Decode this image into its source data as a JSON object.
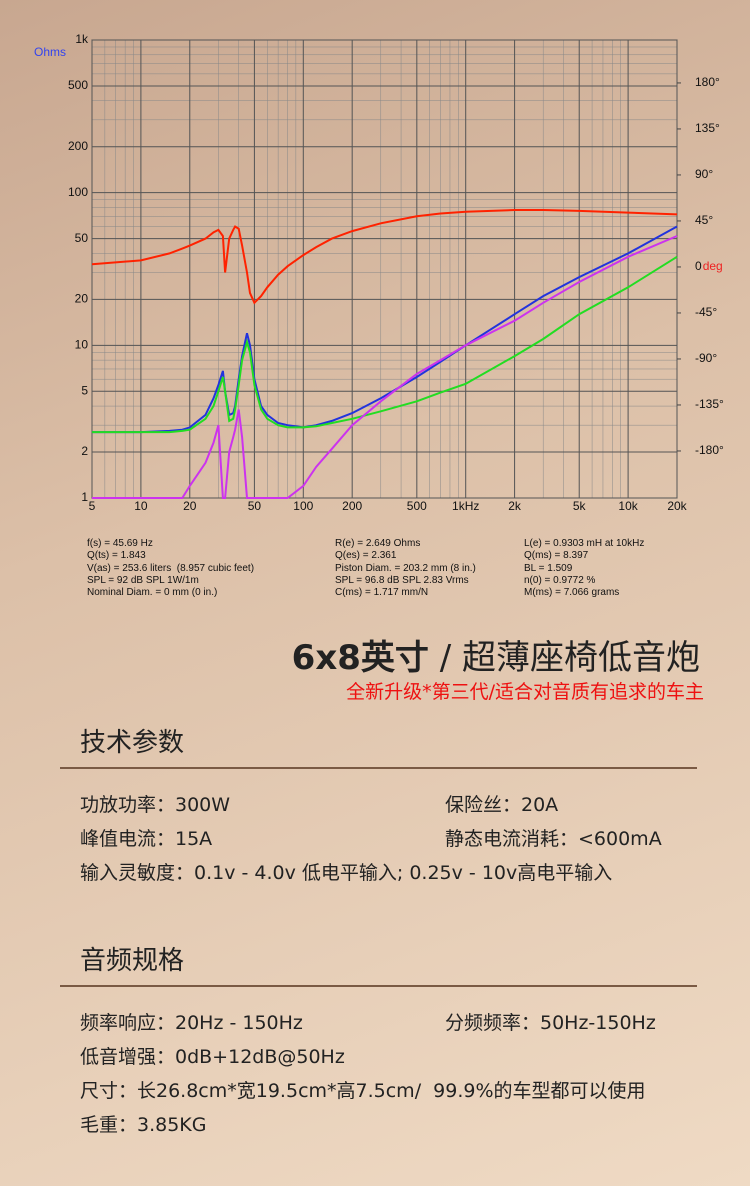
{
  "chart_data": {
    "type": "line",
    "xscale": "log",
    "yscale": "log",
    "xlim": [
      5,
      20000
    ],
    "ylim": [
      1,
      1000
    ],
    "y2lim": [
      -226,
      222
    ],
    "xticks": [
      5,
      10,
      20,
      50,
      100,
      200,
      500,
      {
        "value": 1000,
        "label": "1kHz"
      },
      {
        "value": 2000,
        "label": "2k"
      },
      {
        "value": 5000,
        "label": "5k"
      },
      {
        "value": 10000,
        "label": "10k"
      },
      {
        "value": 20000,
        "label": "20k"
      }
    ],
    "yticks": [
      1,
      2,
      5,
      10,
      20,
      50,
      100,
      200,
      500,
      {
        "value": 1000,
        "label": "1k"
      }
    ],
    "y2ticks": [
      {
        "value": 180,
        "label": "180°"
      },
      {
        "value": 135,
        "label": "135°"
      },
      {
        "value": 90,
        "label": "90°"
      },
      {
        "value": 45,
        "label": "45°"
      },
      0,
      {
        "value": -45,
        "label": "-45°"
      },
      {
        "value": -90,
        "label": "-90°"
      },
      {
        "value": -135,
        "label": "-135°"
      },
      {
        "value": -180,
        "label": "-180°"
      }
    ],
    "ylabel": "Ohms",
    "y2label": "deg",
    "grid": true,
    "x": [
      5,
      10,
      15,
      18,
      20,
      25,
      28,
      30,
      32,
      33,
      35,
      37,
      38,
      40,
      42,
      45,
      47,
      50,
      55,
      60,
      70,
      80,
      100,
      120,
      150,
      200,
      300,
      500,
      700,
      1000,
      2000,
      3000,
      5000,
      10000,
      20000
    ],
    "series": [
      {
        "color": "#ff2200",
        "values": [
          34,
          36,
          40,
          43,
          45,
          50,
          55,
          57,
          52,
          30,
          50,
          57,
          60,
          58,
          45,
          30,
          22,
          19,
          21,
          24,
          29,
          33,
          39,
          44,
          50,
          56,
          63,
          70,
          73,
          75,
          77,
          77,
          76,
          74,
          72
        ]
      },
      {
        "color": "#2233dd",
        "values": [
          2.7,
          2.7,
          2.75,
          2.8,
          2.9,
          3.5,
          4.5,
          5.5,
          6.8,
          5,
          3.5,
          3.6,
          4,
          6,
          8.5,
          12,
          10,
          6,
          4,
          3.5,
          3.1,
          3,
          2.9,
          3,
          3.2,
          3.6,
          4.5,
          6.2,
          7.8,
          10,
          16,
          21,
          28,
          40,
          60
        ]
      },
      {
        "color": "#22dd22",
        "values": [
          2.7,
          2.7,
          2.7,
          2.75,
          2.8,
          3.3,
          4,
          5,
          6.2,
          5,
          3.2,
          3.3,
          3.8,
          5.5,
          8,
          10.5,
          9,
          5.5,
          3.8,
          3.3,
          3,
          2.9,
          2.9,
          2.95,
          3.1,
          3.3,
          3.7,
          4.3,
          4.9,
          5.6,
          8.5,
          11,
          16,
          24,
          38
        ]
      },
      {
        "color": "#cc33ee",
        "values": [
          1,
          1,
          1,
          1,
          1.2,
          1.7,
          2.3,
          3,
          1,
          1,
          2,
          2.5,
          2.8,
          3.8,
          2.5,
          1,
          1,
          1,
          1,
          1,
          1,
          1,
          1.2,
          1.6,
          2.1,
          3,
          4.3,
          6.5,
          8,
          10,
          14.5,
          19,
          26,
          38,
          52
        ]
      }
    ]
  },
  "parameters": [
    [
      "f(s) = 45.69 Hz",
      "Q(ts) = 1.843",
      "V(as) = 253.6 liters  (8.957 cubic feet)",
      "SPL = 92 dB SPL 1W/1m",
      "Nominal Diam. = 0 mm (0 in.)"
    ],
    [
      "R(e) = 2.649 Ohms",
      "Q(es) = 2.361",
      "Piston Diam. = 203.2 mm (8 in.)",
      "SPL = 96.8 dB SPL 2.83 Vrms",
      "C(ms) = 1.717 mm/N"
    ],
    [
      "L(e) = 0.9303 mH at 10kHz",
      "Q(ms) = 8.397",
      "BL = 1.509",
      "n(0) = 0.9772 %",
      "M(ms) = 7.066 grams"
    ]
  ],
  "product": {
    "title_bold": "6x8英寸",
    "title_rest": " / 超薄座椅低音炮",
    "tagline": "全新升级*第三代/适合对音质有追求的车主"
  },
  "sections": [
    {
      "heading": "技术参数",
      "rows": [
        [
          "功放功率：300W",
          "保险丝：20A"
        ],
        [
          "峰值电流：15A",
          "静态电流消耗：<600mA"
        ],
        [
          "输入灵敏度：0.1v - 4.0v 低电平输入; 0.25v - 10v高电平输入"
        ]
      ]
    },
    {
      "heading": "音频规格",
      "rows": [
        [
          "频率响应：20Hz - 150Hz",
          "分频频率：50Hz-150Hz"
        ],
        [
          "低音增强：0dB+12dB@50Hz"
        ],
        [
          "尺寸：长26.8cm*宽19.5cm*高7.5cm/  99.9%的车型都可以使用"
        ],
        [
          "毛重：3.85KG"
        ]
      ]
    }
  ]
}
